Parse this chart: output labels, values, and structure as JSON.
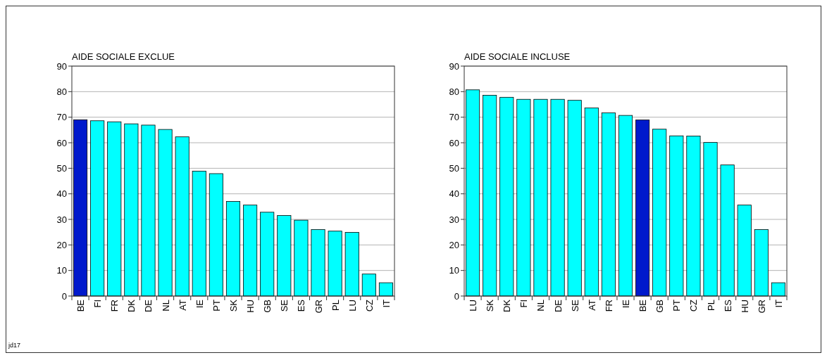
{
  "chart_data": [
    {
      "type": "bar",
      "title": "AIDE SOCIALE EXCLUE",
      "categories": [
        "BE",
        "FI",
        "FR",
        "DK",
        "DE",
        "NL",
        "AT",
        "IE",
        "PT",
        "SK",
        "HU",
        "GB",
        "SE",
        "ES",
        "GR",
        "PL",
        "LU",
        "CZ",
        "IT"
      ],
      "values": [
        69.0,
        68.6,
        68.2,
        67.4,
        66.9,
        65.2,
        62.3,
        48.9,
        47.9,
        37.0,
        35.6,
        32.8,
        31.5,
        29.7,
        26.0,
        25.4,
        24.9,
        8.6,
        5.2
      ],
      "colors": [
        "#0019cc",
        "#00ffff",
        "#00ffff",
        "#00ffff",
        "#00ffff",
        "#00ffff",
        "#00ffff",
        "#00ffff",
        "#00ffff",
        "#00ffff",
        "#00ffff",
        "#00ffff",
        "#00ffff",
        "#00ffff",
        "#00ffff",
        "#00ffff",
        "#00ffff",
        "#00ffff",
        "#00ffff"
      ],
      "ylim": [
        0,
        90
      ],
      "yticks": [
        0,
        10,
        20,
        30,
        40,
        50,
        60,
        70,
        80,
        90
      ],
      "grid": "y",
      "annotations": [
        "jd17"
      ]
    },
    {
      "type": "bar",
      "title": "AIDE SOCIALE INCLUSE",
      "categories": [
        "LU",
        "SK",
        "DK",
        "FI",
        "NL",
        "DE",
        "SE",
        "AT",
        "FR",
        "IE",
        "BE",
        "GB",
        "PT",
        "CZ",
        "PL",
        "ES",
        "HU",
        "GR",
        "IT"
      ],
      "values": [
        80.7,
        78.6,
        77.8,
        77.0,
        77.0,
        77.0,
        76.6,
        73.6,
        71.7,
        70.7,
        68.9,
        65.3,
        62.7,
        62.6,
        60.1,
        51.3,
        35.6,
        26.0,
        5.2
      ],
      "colors": [
        "#00ffff",
        "#00ffff",
        "#00ffff",
        "#00ffff",
        "#00ffff",
        "#00ffff",
        "#00ffff",
        "#00ffff",
        "#00ffff",
        "#00ffff",
        "#0019cc",
        "#00ffff",
        "#00ffff",
        "#00ffff",
        "#00ffff",
        "#00ffff",
        "#00ffff",
        "#00ffff",
        "#00ffff"
      ],
      "ylim": [
        0,
        90
      ],
      "yticks": [
        0,
        10,
        20,
        30,
        40,
        50,
        60,
        70,
        80,
        90
      ],
      "grid": "y"
    }
  ]
}
